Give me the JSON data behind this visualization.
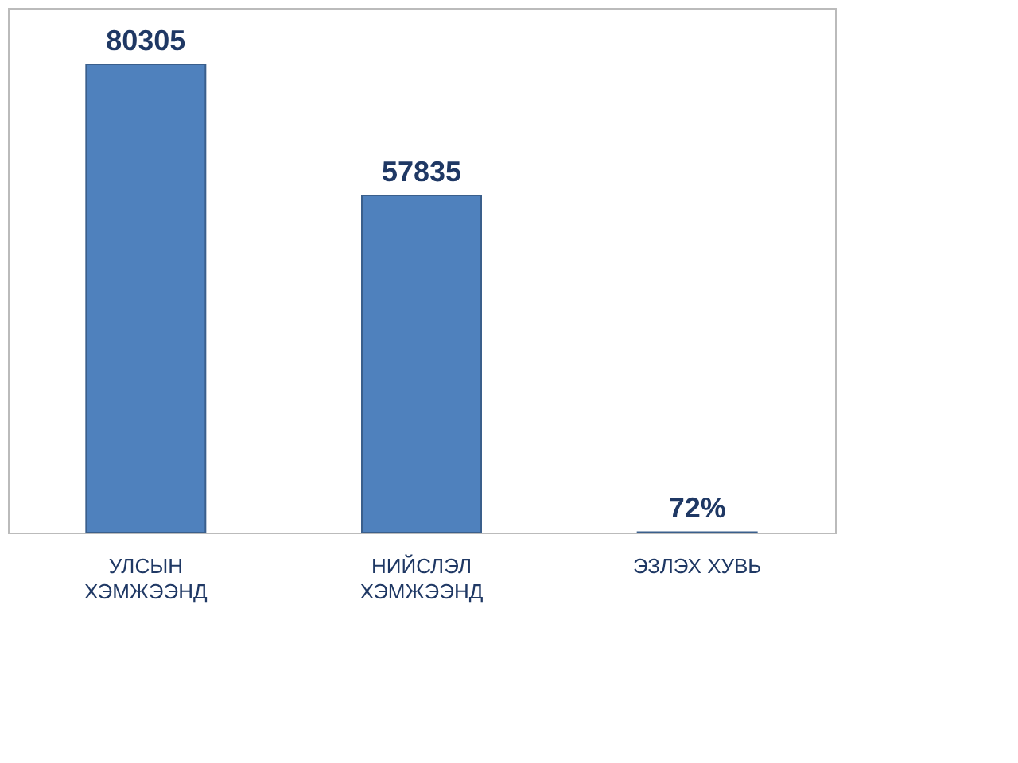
{
  "chart_data": {
    "type": "bar",
    "categories": [
      "УЛСЫН\nХЭМЖЭЭНД",
      "НИЙСЛЭЛ\nХЭМЖЭЭНД",
      "ЭЗЛЭХ ХУВЬ"
    ],
    "values": [
      80305,
      57835,
      72
    ],
    "value_labels": [
      "80305",
      "57835",
      "72%"
    ],
    "color": "#4f81bd",
    "grid": false
  }
}
